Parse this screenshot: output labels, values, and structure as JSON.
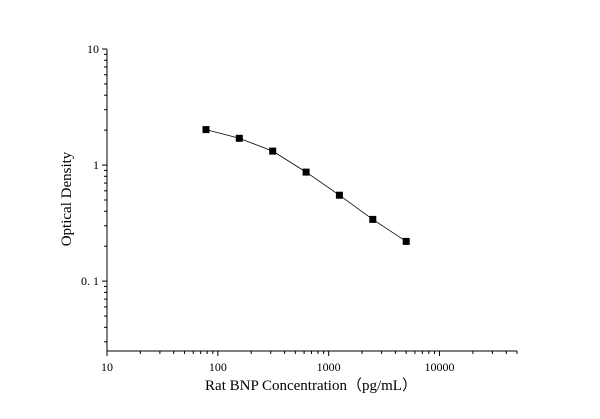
{
  "chart_data": {
    "type": "scatter",
    "title": "",
    "xlabel": "Rat BNP Concentration（pg/mL）",
    "ylabel": "Optical Density",
    "x_scale": "log",
    "y_scale": "log",
    "xlim": [
      10,
      50000
    ],
    "ylim": [
      0.025,
      10
    ],
    "x_ticks": [
      {
        "value": 10,
        "label": "10"
      },
      {
        "value": 100,
        "label": "100"
      },
      {
        "value": 1000,
        "label": "1000"
      },
      {
        "value": 10000,
        "label": "10000"
      }
    ],
    "y_ticks": [
      {
        "value": 10,
        "label": "10"
      },
      {
        "value": 1,
        "label": "1"
      },
      {
        "value": 0.1,
        "label": "0. 1"
      }
    ],
    "grid": false,
    "legend": "none",
    "series": [
      {
        "x": [
          78.13,
          156.25,
          312.5,
          625,
          1250,
          2500,
          5000
        ],
        "y": [
          2.02,
          1.7,
          1.32,
          0.87,
          0.55,
          0.34,
          0.22
        ],
        "marker": "square",
        "color": "#000000"
      }
    ]
  }
}
